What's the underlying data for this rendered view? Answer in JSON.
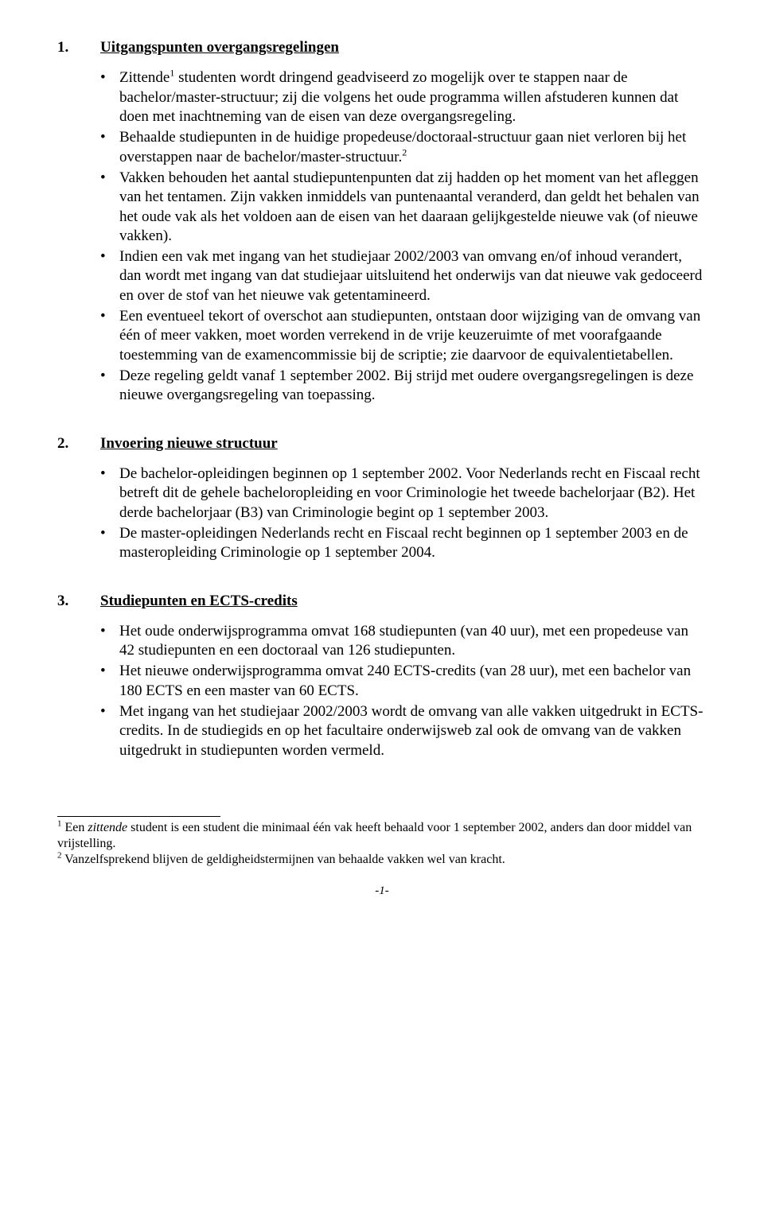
{
  "sections": [
    {
      "num": "1.",
      "title": "Uitgangspunten overgangsregelingen",
      "bullets": [
        {
          "pre": "Zittende",
          "sup": "1",
          "post": " studenten wordt dringend geadviseerd zo mogelijk over te stappen naar de bachelor/master-structuur; zij die volgens het oude programma willen afstuderen kunnen dat doen met inachtneming van de eisen van deze overgangsregeling."
        },
        {
          "pre": "Behaalde studiepunten in de huidige propedeuse/doctoraal-structuur gaan niet verloren bij het overstappen naar de bachelor/master-structuur.",
          "sup": "2",
          "post": ""
        },
        {
          "pre": "Vakken behouden het aantal studiepuntenpunten dat zij hadden op het moment van het afleggen van het tentamen. Zijn vakken inmiddels van puntenaantal veranderd, dan geldt het behalen van het oude vak als het voldoen aan de eisen van het daaraan gelijkgestelde nieuwe vak (of nieuwe vakken).",
          "sup": "",
          "post": ""
        },
        {
          "pre": "Indien een vak met ingang van het studiejaar 2002/2003 van omvang en/of inhoud verandert, dan wordt met ingang van dat studiejaar uitsluitend het onderwijs van dat nieuwe vak gedoceerd en over de stof van het nieuwe vak getentamineerd.",
          "sup": "",
          "post": ""
        },
        {
          "pre": "Een eventueel tekort of overschot aan studiepunten, ontstaan door wijziging van de omvang van één of meer vakken, moet worden verrekend in de vrije keuzeruimte of met voorafgaande toestemming van de examencommissie bij de scriptie; zie daarvoor de equivalentietabellen.",
          "sup": "",
          "post": ""
        },
        {
          "pre": "Deze regeling geldt vanaf 1 september 2002. Bij strijd met oudere overgangsregelingen is deze nieuwe overgangsregeling van toepassing.",
          "sup": "",
          "post": ""
        }
      ]
    },
    {
      "num": "2.",
      "title": "Invoering nieuwe structuur",
      "bullets": [
        {
          "pre": "De bachelor-opleidingen beginnen op 1 september 2002. Voor Nederlands recht en Fiscaal recht betreft dit de gehele bacheloropleiding en voor Criminologie het tweede bachelorjaar (B2). Het derde bachelorjaar (B3) van Criminologie begint op 1 september 2003.",
          "sup": "",
          "post": ""
        },
        {
          "pre": "De master-opleidingen Nederlands recht en Fiscaal recht beginnen op 1 september 2003 en de masteropleiding Criminologie op 1 september 2004.",
          "sup": "",
          "post": ""
        }
      ]
    },
    {
      "num": "3.",
      "title": "Studiepunten en ECTS-credits",
      "bullets": [
        {
          "pre": "Het oude onderwijsprogramma omvat 168 studiepunten (van 40 uur), met een propedeuse van 42 studiepunten en een doctoraal van 126 studiepunten.",
          "sup": "",
          "post": ""
        },
        {
          "pre": "Het nieuwe onderwijsprogramma omvat 240 ECTS-credits (van 28 uur), met een bachelor van 180 ECTS en een master van 60 ECTS.",
          "sup": "",
          "post": ""
        },
        {
          "pre": "Met ingang van het studiejaar 2002/2003 wordt de omvang van alle vakken uitgedrukt in ECTS-credits. In de studiegids en op het facultaire onderwijsweb zal ook de omvang van de vakken uitgedrukt in studiepunten worden vermeld.",
          "sup": "",
          "post": ""
        }
      ]
    }
  ],
  "footnotes": [
    {
      "num": "1",
      "preItalic": " Een ",
      "italic": "zittende",
      "post": " student is een student die minimaal één vak heeft behaald voor 1 september 2002, anders dan door middel van vrijstelling."
    },
    {
      "num": "2",
      "preItalic": " Vanzelfsprekend blijven de geldigheidstermijnen van behaalde vakken wel van kracht.",
      "italic": "",
      "post": ""
    }
  ],
  "pageNumber": "-1-"
}
